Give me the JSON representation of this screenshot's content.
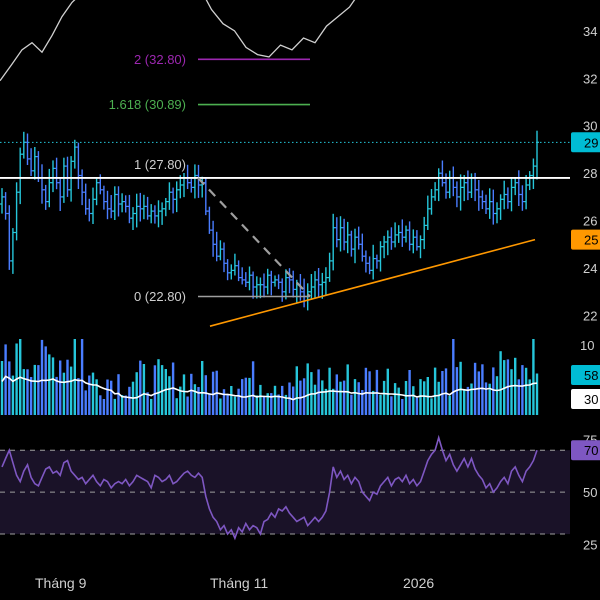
{
  "chart_data": {
    "type": "ohlc",
    "price_axis": {
      "ticks": [
        "34",
        "32",
        "30",
        "28",
        "26",
        "24",
        "22"
      ],
      "tick_values": [
        34,
        32,
        30,
        28,
        26,
        24,
        22
      ],
      "ylim": [
        21.6,
        35.3
      ]
    },
    "time_axis": {
      "labels": [
        "Tháng 9",
        "Tháng 11",
        "2026"
      ]
    },
    "price_badges": [
      {
        "text": "29",
        "value": 29.3,
        "color": "#00bcd4",
        "text_color": "#000000"
      },
      {
        "text": "25",
        "value": 25.2,
        "color": "#ff9800",
        "text_color": "#000000"
      }
    ],
    "fibonacci": [
      {
        "label": "2 (32.80)",
        "level": 32.8,
        "color": "#9c27b0"
      },
      {
        "label": "1.618 (30.89)",
        "level": 30.89,
        "color": "#4caf50"
      },
      {
        "label": "1 (27.80)",
        "level": 27.8,
        "color": "#ffffff"
      },
      {
        "label": "0 (22.80)",
        "level": 22.8,
        "color": "#9e9e9e"
      }
    ],
    "close_series": [
      27.0,
      26.3,
      24.3,
      25.5,
      27.2,
      28.8,
      29.3,
      28.6,
      28.1,
      28.7,
      27.8,
      27.3,
      26.8,
      27.6,
      28.2,
      27.6,
      27.0,
      28.3,
      27.3,
      28.5,
      29.1,
      27.9,
      27.2,
      26.5,
      26.3,
      26.9,
      27.6,
      27.3,
      26.8,
      26.5,
      26.4,
      27.1,
      26.7,
      26.8,
      26.6,
      26.1,
      26.3,
      26.6,
      26.5,
      26.6,
      26.2,
      26.4,
      26.2,
      26.4,
      26.5,
      26.8,
      27.2,
      26.9,
      27.3,
      27.5,
      27.8,
      27.6,
      27.4,
      27.9,
      27.5,
      27.6,
      26.4,
      25.6,
      25.0,
      24.5,
      24.8,
      24.2,
      23.8,
      23.9,
      24.1,
      23.6,
      23.5,
      23.4,
      23.7,
      23.2,
      23.3,
      23.3,
      23.2,
      23.7,
      23.4,
      23.5,
      23.4,
      23.0,
      23.6,
      23.5,
      23.1,
      23.3,
      23.0,
      22.8,
      23.0,
      23.2,
      23.5,
      23.3,
      23.4,
      23.6,
      24.3,
      25.7,
      25.2,
      25.7,
      25.1,
      25.4,
      24.8,
      25.3,
      25.0,
      24.5,
      24.2,
      23.9,
      24.4,
      24.3,
      24.9,
      25.1,
      25.3,
      25.1,
      25.4,
      25.5,
      25.3,
      25.6,
      25.0,
      25.3,
      24.9,
      25.2,
      25.8,
      26.5,
      27.0,
      27.3,
      28.0,
      27.6,
      27.2,
      27.8,
      27.4,
      27.0,
      27.4,
      27.6,
      27.2,
      27.8,
      27.3,
      27.0,
      26.8,
      26.5,
      26.8,
      26.3,
      26.5,
      26.9,
      27.1,
      26.8,
      27.4,
      27.6,
      27.1,
      26.8,
      27.5,
      27.9,
      28.3,
      29.3
    ],
    "volume_panel": {
      "ticks": [
        "10"
      ],
      "badges": [
        {
          "text": "58",
          "color": "#00bcd4",
          "text_color": "#000000"
        },
        {
          "text": "30",
          "color": "#ffffff",
          "text_color": "#000000"
        }
      ]
    },
    "rsi_panel": {
      "ticks": [
        "75",
        "50",
        "25"
      ],
      "tick_values": [
        75,
        50,
        25
      ],
      "ylim": [
        20,
        82
      ],
      "bands": [
        70,
        50,
        30
      ],
      "badge": {
        "text": "70",
        "value": 70,
        "color": "#7e57c2",
        "text_color": "#000000"
      },
      "values": [
        62,
        66,
        70,
        64,
        58,
        55,
        60,
        63,
        57,
        54,
        53,
        57,
        61,
        62,
        59,
        60,
        58,
        64,
        65,
        60,
        58,
        56,
        57,
        54,
        56,
        58,
        55,
        53,
        56,
        55,
        52,
        54,
        55,
        54,
        56,
        53,
        55,
        58,
        57,
        56,
        55,
        52,
        58,
        57,
        55,
        56,
        58,
        54,
        55,
        57,
        59,
        60,
        58,
        57,
        59,
        57,
        48,
        42,
        38,
        36,
        32,
        34,
        30,
        32,
        28,
        33,
        31,
        35,
        32,
        34,
        33,
        30,
        36,
        37,
        40,
        38,
        42,
        41,
        43,
        40,
        38,
        36,
        37,
        38,
        34,
        36,
        38,
        36,
        38,
        41,
        50,
        62,
        57,
        60,
        56,
        58,
        54,
        57,
        55,
        50,
        48,
        46,
        50,
        49,
        53,
        55,
        57,
        53,
        56,
        57,
        55,
        58,
        54,
        56,
        53,
        55,
        60,
        65,
        68,
        70,
        76,
        70,
        65,
        68,
        63,
        60,
        63,
        66,
        62,
        66,
        61,
        58,
        56,
        52,
        54,
        50,
        52,
        55,
        57,
        54,
        60,
        62,
        58,
        55,
        60,
        62,
        65,
        70
      ],
      "colors": {
        "line": "#7e57c2",
        "fill": "#1a1228",
        "band": "#9e9e9e"
      }
    },
    "colors": {
      "up": "#26c6da",
      "down": "#4a7dff",
      "horizontal_line": "#ffffff",
      "dotted_line": "#26c6da",
      "trendline": "#ff9800",
      "projection": "#9e9e9e",
      "volume_ma": "#ffffff",
      "axis_text": "#cfcfcf",
      "background": "#000000"
    }
  }
}
